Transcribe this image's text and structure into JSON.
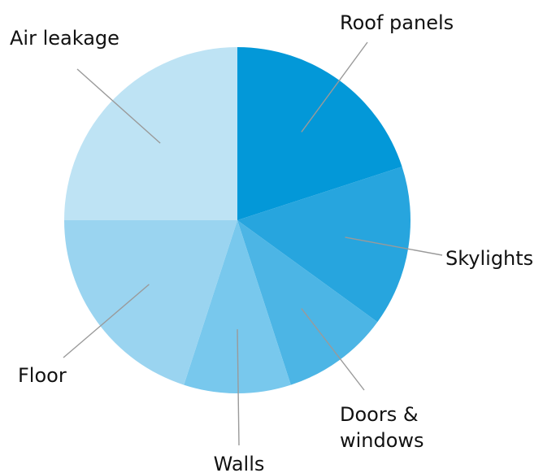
{
  "chart_data": {
    "type": "pie",
    "title": "",
    "categories": [
      "Roof panels",
      "Skylights",
      "Doors & windows",
      "Walls",
      "Floor",
      "Air leakage"
    ],
    "label_lines": [
      [
        "Roof panels"
      ],
      [
        "Skylights"
      ],
      [
        "Doors &",
        "windows"
      ],
      [
        "Walls"
      ],
      [
        "Floor"
      ],
      [
        "Air leakage"
      ]
    ],
    "values": [
      20,
      15,
      10,
      10,
      20,
      25
    ],
    "colors": [
      "#0398d8",
      "#27a5de",
      "#4cb5e5",
      "#78c8ed",
      "#9ad4f0",
      "#bee3f4"
    ],
    "start_angle_deg": 0,
    "direction": "clockwise",
    "legend": "none",
    "data_labels": "outside-with-leader-lines"
  }
}
